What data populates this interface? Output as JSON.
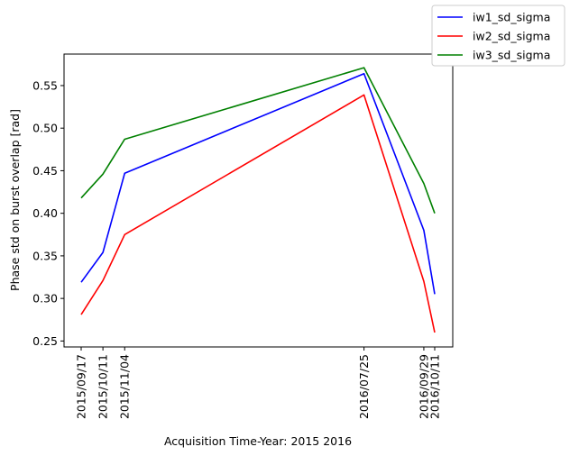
{
  "chart_data": {
    "type": "line",
    "x": [
      "2015-09-17",
      "2015-10-11",
      "2015-11-04",
      "2016-07-25",
      "2016-09-29",
      "2016-10-11"
    ],
    "x_tick_labels": [
      "2015/09/17",
      "2015/10/11",
      "2015/11/04",
      "2016/07/25",
      "2016/09/29",
      "2016/10/11"
    ],
    "series": [
      {
        "name": "iw1_sd_sigma",
        "color": "#0000ff",
        "values": [
          0.319,
          0.354,
          0.447,
          0.564,
          0.38,
          0.305
        ]
      },
      {
        "name": "iw2_sd_sigma",
        "color": "#ff0000",
        "values": [
          0.281,
          0.321,
          0.375,
          0.539,
          0.32,
          0.26
        ]
      },
      {
        "name": "iw3_sd_sigma",
        "color": "#008000",
        "values": [
          0.418,
          0.446,
          0.487,
          0.571,
          0.435,
          0.4
        ]
      }
    ],
    "xlabel": "Acquisition Time-Year: 2015 2016",
    "ylabel": "Phase std on burst overlap [rad]",
    "ylim": [
      0.243,
      0.587
    ],
    "y_ticks": [
      0.25,
      0.3,
      0.35,
      0.4,
      0.45,
      0.5,
      0.55
    ],
    "grid": false,
    "legend_position": "top-right (outside)"
  }
}
